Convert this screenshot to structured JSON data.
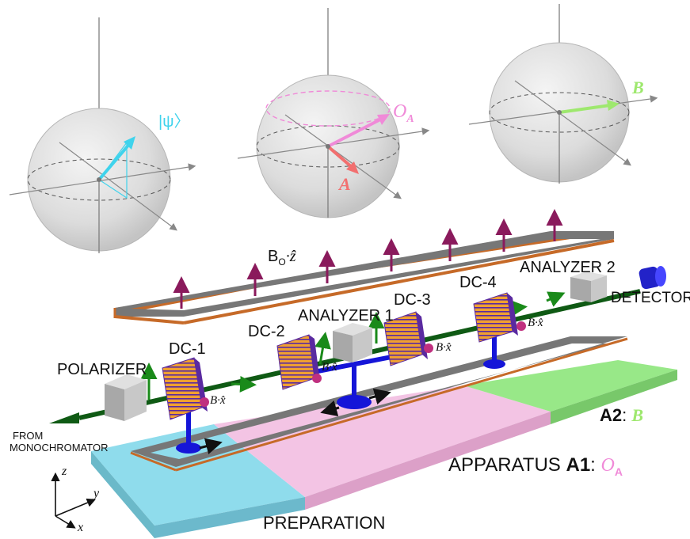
{
  "spheres": {
    "psi_label": "|ψ〉",
    "oa_label": "O",
    "oa_sub": "A",
    "a_label": "A",
    "b_label": "B"
  },
  "field": {
    "bz_label_main": "B",
    "bz_label_sub": "O",
    "bz_label_tail": "·ẑ"
  },
  "components": {
    "polarizer": "POLARIZER",
    "dc1": "DC-1",
    "dc2": "DC-2",
    "dc3": "DC-3",
    "dc4": "DC-4",
    "analyzer1": "ANALYZER 1",
    "analyzer2": "ANALYZER 2",
    "detector": "DETECTOR",
    "from_line1": "FROM",
    "from_line2": "MONOCHROMATOR",
    "bx_label": "B·x̂"
  },
  "regions": {
    "preparation": "PREPARATION",
    "a1_prefix": "APPARATUS ",
    "a1_bold": "A1",
    "a1_colon": ": ",
    "a1_symbol": "O",
    "a1_symbol_sub": "A",
    "a2_bold": "A2",
    "a2_colon": ": ",
    "a2_symbol": "B"
  },
  "axes": {
    "x": "x",
    "y": "y",
    "z": "z"
  },
  "colors": {
    "prep_blue": "#8fdcec",
    "a1_pink": "#f3c4e4",
    "a2_green": "#98e888",
    "psi_cyan": "#3fd3ec",
    "oa_pink": "#f08ad8",
    "a_red": "#f26f6f",
    "b_green": "#9ee86e",
    "beam": "#0f5a14",
    "coil": "#f0a030",
    "stand_blue": "#1515d8",
    "field_arrow": "#8a1a5c"
  }
}
